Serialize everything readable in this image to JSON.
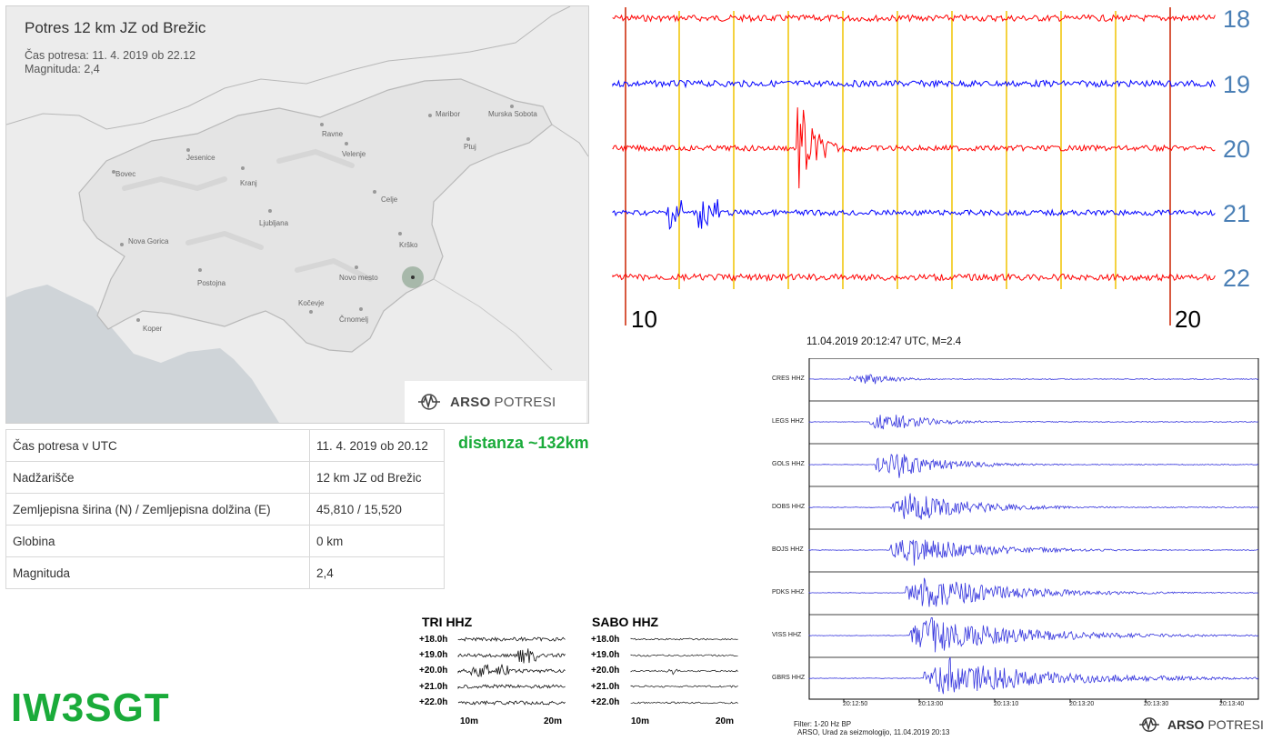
{
  "map": {
    "title": "Potres 12 km JZ od Brežic",
    "time_line": "Čas potresa: 11. 4. 2019 ob 22.12",
    "magnitude_line": "Magnituda: 2,4",
    "cities": [
      "Maribor",
      "Murska Sobota",
      "Ravne",
      "Ptuj",
      "Bovec",
      "Jesenice",
      "Velenje",
      "Kranj",
      "Celje",
      "Ljubljana",
      "Nova Gorica",
      "Krško",
      "Novo mesto",
      "Postojna",
      "Kočevje",
      "Koper",
      "Črnomelj"
    ],
    "logo_bold": "ARSO",
    "logo_light": "POTRESI"
  },
  "info": [
    {
      "label": "Čas potresa v UTC",
      "value": "11. 4. 2019 ob 20.12"
    },
    {
      "label": "Nadžarišče",
      "value": "12 km JZ od Brežic"
    },
    {
      "label": "Zemljepisna širina (N) / Zemljepisna dolžina (E)",
      "value": "45,810 / 15,520"
    },
    {
      "label": "Globina",
      "value": "0 km"
    },
    {
      "label": "Magnituda",
      "value": "2,4"
    }
  ],
  "distance_label": "distanza ~132km",
  "callsign": "IW3SGT",
  "helicorder": {
    "hours": [
      "18",
      "19",
      "20",
      "21",
      "22"
    ],
    "x_start": "10",
    "x_end": "20",
    "colors": [
      "#ff0000",
      "#0000ff",
      "#ff0000",
      "#0000ff",
      "#ff0000"
    ]
  },
  "drums": [
    {
      "title": "TRI HHZ",
      "rows": [
        "+18.0h",
        "+19.0h",
        "+20.0h",
        "+21.0h",
        "+22.0h"
      ],
      "x_start": "10m",
      "x_end": "20m"
    },
    {
      "title": "SABO HHZ",
      "rows": [
        "+18.0h",
        "+19.0h",
        "+20.0h",
        "+21.0h",
        "+22.0h"
      ],
      "x_start": "10m",
      "x_end": "20m"
    }
  ],
  "network": {
    "header": "11.04.2019  20:12:47 UTC, M=2.4",
    "stations": [
      "CRES HHZ",
      "LEGS HHZ",
      "GOLS HHZ",
      "DOBS HHZ",
      "BOJS HHZ",
      "PDKS HHZ",
      "VISS HHZ",
      "GBRS HHZ"
    ],
    "times": [
      "20:12:50",
      "20:13:00",
      "20:13:10",
      "20:13:20",
      "20:13:30",
      "20:13:40"
    ],
    "footer_filter": "Filter: 1-20 Hz BP",
    "footer_source": "ARSO, Urad za seizmologijo, 11.04.2019  20:13",
    "logo_bold": "ARSO",
    "logo_light": "POTRESI"
  }
}
